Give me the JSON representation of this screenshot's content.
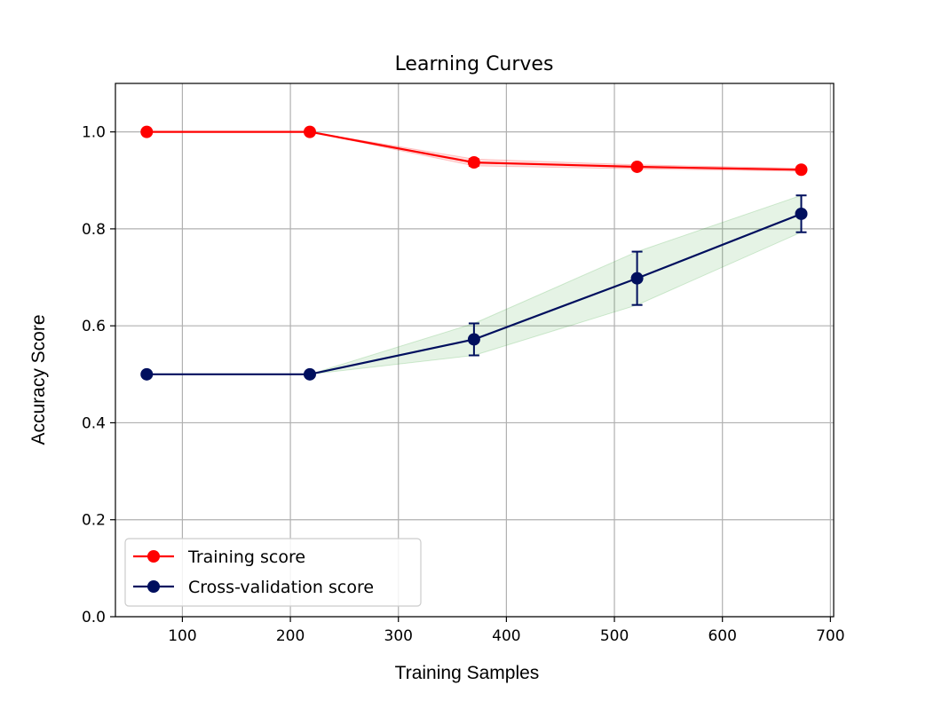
{
  "chart_data": {
    "type": "line",
    "title": "Learning Curves",
    "xlabel": "Training Samples",
    "ylabel": "Accuracy Score",
    "xlim": [
      38,
      703
    ],
    "ylim": [
      0.0,
      1.1
    ],
    "xticks": [
      100,
      200,
      300,
      400,
      500,
      600,
      700
    ],
    "yticks": [
      0.0,
      0.2,
      0.4,
      0.6,
      0.8,
      1.0
    ],
    "xtick_labels": [
      "100",
      "200",
      "300",
      "400",
      "500",
      "600",
      "700"
    ],
    "ytick_labels": [
      "0.0",
      "0.2",
      "0.4",
      "0.6",
      "0.8",
      "1.0"
    ],
    "grid": true,
    "legend_position": "lower-left",
    "x": [
      67,
      218,
      370,
      521,
      673
    ],
    "series": [
      {
        "name": "Training score",
        "color": "#ff0000",
        "fill_color": "#ff0000",
        "values": [
          1.0,
          1.0,
          0.937,
          0.928,
          0.922
        ],
        "std": [
          0.0,
          0.0,
          0.007,
          0.004,
          0.003
        ]
      },
      {
        "name": "Cross-validation score",
        "color": "#000f5e",
        "fill_color": "#2ca02c",
        "values": [
          0.5,
          0.5,
          0.572,
          0.698,
          0.831
        ],
        "std": [
          0.0,
          0.0,
          0.033,
          0.055,
          0.038
        ]
      }
    ]
  }
}
